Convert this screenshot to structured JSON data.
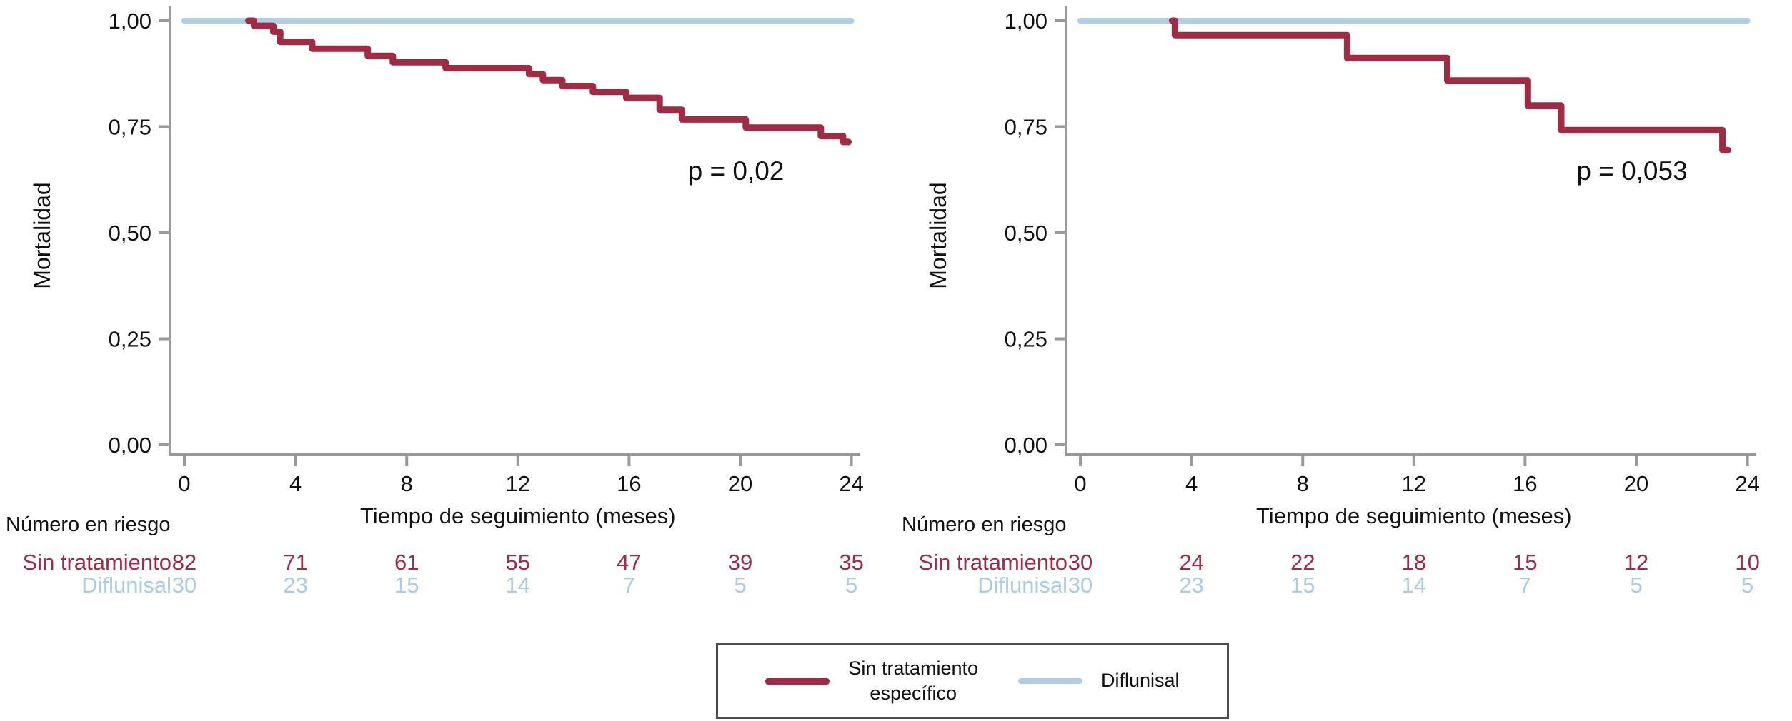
{
  "figure": {
    "background": "#ffffff",
    "axis_color": "#9a9a9a",
    "text_color": "#111111",
    "ylabel": "Mortalidad",
    "xlabel": "Tiempo de seguimiento (meses)",
    "y_ticks": [
      {
        "v": 1.0,
        "label": "1,00"
      },
      {
        "v": 0.75,
        "label": "0,75"
      },
      {
        "v": 0.5,
        "label": "0,50"
      },
      {
        "v": 0.25,
        "label": "0,25"
      },
      {
        "v": 0.0,
        "label": "0,00"
      }
    ],
    "x_ticks": [
      0,
      4,
      8,
      12,
      16,
      20,
      24
    ]
  },
  "chart_data": [
    {
      "type": "line",
      "subtype": "kaplan-meier-step",
      "panel": "left",
      "title": "",
      "xlabel": "Tiempo de seguimiento (meses)",
      "ylabel": "Mortalidad",
      "xlim": [
        0,
        24
      ],
      "ylim": [
        0.0,
        1.0
      ],
      "grid": false,
      "p_label": "p = 0,02",
      "series": [
        {
          "name": "Sin tratamiento específico",
          "color": "#a12b43",
          "stroke_width": 9,
          "start": [
            2.3,
            1.0
          ],
          "drops": [
            [
              2.5,
              0.988
            ],
            [
              3.2,
              0.974
            ],
            [
              3.45,
              0.95
            ],
            [
              4.6,
              0.934
            ],
            [
              6.6,
              0.917
            ],
            [
              7.5,
              0.902
            ],
            [
              9.4,
              0.888
            ],
            [
              12.4,
              0.874
            ],
            [
              12.9,
              0.86
            ],
            [
              13.6,
              0.846
            ],
            [
              14.7,
              0.832
            ],
            [
              15.9,
              0.818
            ],
            [
              17.1,
              0.79
            ],
            [
              17.9,
              0.767
            ],
            [
              20.2,
              0.748
            ],
            [
              22.9,
              0.728
            ],
            [
              23.7,
              0.714
            ]
          ],
          "end_x": 23.9
        },
        {
          "name": "Diflunisal",
          "color": "#aecde9",
          "stroke_width": 8,
          "start": [
            0,
            1.0
          ],
          "drops": [],
          "end_x": 24
        }
      ],
      "risk_table": {
        "header": "Número en riesgo",
        "time_points": [
          0,
          4,
          8,
          12,
          16,
          20,
          24
        ],
        "rows": [
          {
            "label": "Sin tratamiento",
            "color": "#a12b43",
            "values": [
              82,
              71,
              61,
              55,
              47,
              39,
              35
            ]
          },
          {
            "label": "Diflunisal",
            "color": "#a9cce9",
            "values": [
              30,
              23,
              15,
              14,
              7,
              5,
              5
            ]
          }
        ]
      }
    },
    {
      "type": "line",
      "subtype": "kaplan-meier-step",
      "panel": "right",
      "title": "",
      "xlabel": "Tiempo de seguimiento (meses)",
      "ylabel": "Mortalidad",
      "xlim": [
        0,
        24
      ],
      "ylim": [
        0.0,
        1.0
      ],
      "grid": false,
      "p_label": "p = 0,053",
      "series": [
        {
          "name": "Sin tratamiento específico",
          "color": "#a12b43",
          "stroke_width": 9,
          "start": [
            3.3,
            1.0
          ],
          "drops": [
            [
              3.4,
              0.966
            ],
            [
              9.6,
              0.912
            ],
            [
              13.2,
              0.859
            ],
            [
              16.1,
              0.8
            ],
            [
              17.3,
              0.742
            ],
            [
              23.1,
              0.695
            ]
          ],
          "end_x": 23.3
        },
        {
          "name": "Diflunisal",
          "color": "#aecde9",
          "stroke_width": 8,
          "start": [
            0,
            1.0
          ],
          "drops": [],
          "end_x": 24
        }
      ],
      "risk_table": {
        "header": "Número en riesgo",
        "time_points": [
          0,
          4,
          8,
          12,
          16,
          20,
          24
        ],
        "rows": [
          {
            "label": "Sin tratamiento",
            "color": "#a12b43",
            "values": [
              30,
              24,
              22,
              18,
              15,
              12,
              10
            ]
          },
          {
            "label": "Diflunisal",
            "color": "#a9cce9",
            "values": [
              30,
              23,
              15,
              14,
              7,
              5,
              5
            ]
          }
        ]
      }
    }
  ],
  "legend": {
    "items": [
      {
        "label": "Sin tratamiento específico",
        "lines": [
          "Sin tratamiento",
          "específico"
        ],
        "color": "#a12b43",
        "swatch_height": 9
      },
      {
        "label": "Diflunisal",
        "lines": [
          "Diflunisal"
        ],
        "color": "#aecde9",
        "swatch_height": 8
      }
    ]
  }
}
